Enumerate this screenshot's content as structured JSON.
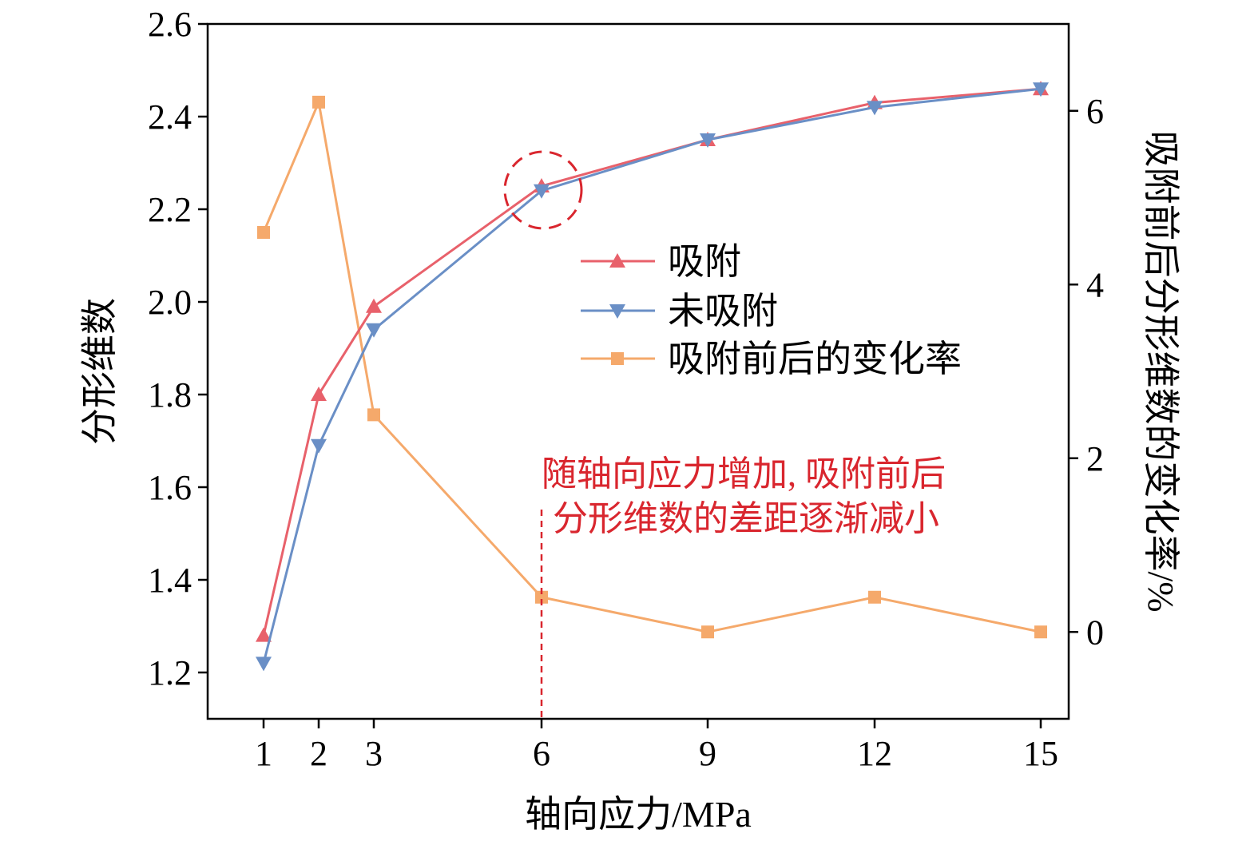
{
  "chart_data": {
    "type": "line",
    "x": [
      1,
      2,
      3,
      6,
      9,
      12,
      15
    ],
    "x_tick_labels": [
      "1",
      "2",
      "3",
      "6",
      "9",
      "12",
      "15"
    ],
    "xlabel": "轴向应力/MPa",
    "ylabel_left": "分形维数",
    "ylabel_right": "吸附前后分形维数的变化率/%",
    "ylim_left": [
      1.1,
      2.6
    ],
    "ylim_right": [
      -1,
      7
    ],
    "yticks_left": [
      "1.2",
      "1.4",
      "1.6",
      "1.8",
      "2.0",
      "2.2",
      "2.4",
      "2.6"
    ],
    "yticks_right": [
      "0",
      "2",
      "4",
      "6"
    ],
    "series": [
      {
        "name": "吸附",
        "axis": "left",
        "marker": "triangle-up",
        "color": "#e8616b",
        "values": [
          1.28,
          1.8,
          1.99,
          2.25,
          2.35,
          2.43,
          2.46
        ]
      },
      {
        "name": "未吸附",
        "axis": "left",
        "marker": "triangle-down",
        "color": "#6a8fc6",
        "values": [
          1.22,
          1.69,
          1.94,
          2.24,
          2.35,
          2.42,
          2.46
        ]
      },
      {
        "name": "吸附前后的变化率",
        "axis": "right",
        "marker": "square",
        "color": "#f5a96b",
        "values": [
          4.6,
          6.1,
          2.5,
          0.4,
          0.0,
          0.4,
          0.0
        ]
      }
    ],
    "legend_position": "center-right",
    "annotation": {
      "lines": [
        "随轴向应力增加, 吸附前后",
        "分形维数的差距逐渐减小"
      ],
      "color": "#d9262e",
      "x": 6
    },
    "grid": false
  }
}
